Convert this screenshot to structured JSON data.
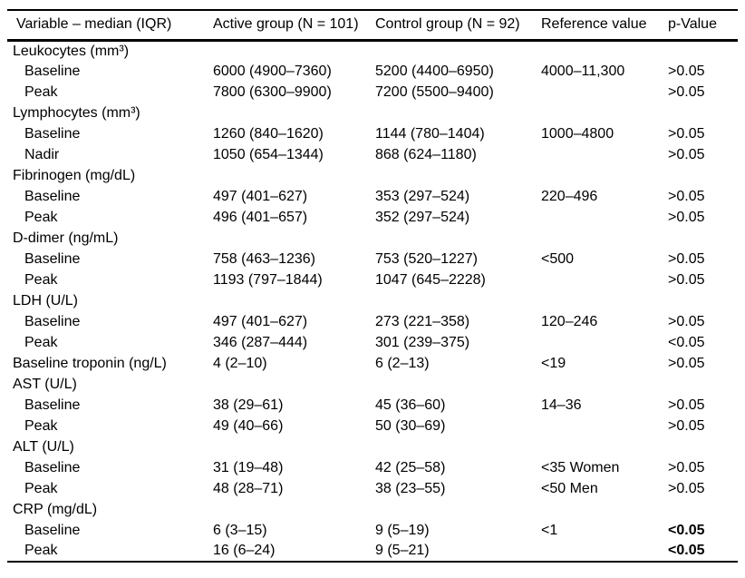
{
  "table": {
    "columns": [
      {
        "label": "Variable – median (IQR)"
      },
      {
        "label": "Active group (N = 101)"
      },
      {
        "label": "Control group (N = 92)"
      },
      {
        "label": "Reference value"
      },
      {
        "label": "p-Value"
      }
    ],
    "rows": [
      {
        "type": "group",
        "variable": "Leukocytes (mm³)",
        "active": "",
        "control": "",
        "reference": "",
        "p": "",
        "p_bold": false
      },
      {
        "type": "sub",
        "variable": "Baseline",
        "active": "6000 (4900–7360)",
        "control": "5200 (4400–6950)",
        "reference": "4000–11,300",
        "p": ">0.05",
        "p_bold": false
      },
      {
        "type": "sub",
        "variable": "Peak",
        "active": "7800 (6300–9900)",
        "control": "7200 (5500–9400)",
        "reference": "",
        "p": ">0.05",
        "p_bold": false
      },
      {
        "type": "group",
        "variable": "Lymphocytes (mm³)",
        "active": "",
        "control": "",
        "reference": "",
        "p": "",
        "p_bold": false
      },
      {
        "type": "sub",
        "variable": "Baseline",
        "active": "1260 (840–1620)",
        "control": "1144 (780–1404)",
        "reference": "1000–4800",
        "p": ">0.05",
        "p_bold": false
      },
      {
        "type": "sub",
        "variable": "Nadir",
        "active": "1050 (654–1344)",
        "control": "868 (624–1180)",
        "reference": "",
        "p": ">0.05",
        "p_bold": false
      },
      {
        "type": "group",
        "variable": "Fibrinogen (mg/dL)",
        "active": "",
        "control": "",
        "reference": "",
        "p": "",
        "p_bold": false
      },
      {
        "type": "sub",
        "variable": "Baseline",
        "active": "497 (401–627)",
        "control": "353 (297–524)",
        "reference": "220–496",
        "p": ">0.05",
        "p_bold": false
      },
      {
        "type": "sub",
        "variable": "Peak",
        "active": "496 (401–657)",
        "control": "352 (297–524)",
        "reference": "",
        "p": ">0.05",
        "p_bold": false
      },
      {
        "type": "group",
        "variable": "D-dimer (ng/mL)",
        "active": "",
        "control": "",
        "reference": "",
        "p": "",
        "p_bold": false
      },
      {
        "type": "sub",
        "variable": "Baseline",
        "active": "758 (463–1236)",
        "control": "753 (520–1227)",
        "reference": "<500",
        "p": ">0.05",
        "p_bold": false
      },
      {
        "type": "sub",
        "variable": "Peak",
        "active": "1193 (797–1844)",
        "control": "1047 (645–2228)",
        "reference": "",
        "p": ">0.05",
        "p_bold": false
      },
      {
        "type": "group",
        "variable": "LDH (U/L)",
        "active": "",
        "control": "",
        "reference": "",
        "p": "",
        "p_bold": false
      },
      {
        "type": "sub",
        "variable": "Baseline",
        "active": "497 (401–627)",
        "control": "273 (221–358)",
        "reference": "120–246",
        "p": ">0.05",
        "p_bold": false
      },
      {
        "type": "sub",
        "variable": "Peak",
        "active": "346 (287–444)",
        "control": "301 (239–375)",
        "reference": "",
        "p": "<0.05",
        "p_bold": false
      },
      {
        "type": "flat",
        "variable": "Baseline troponin (ng/L)",
        "active": "4 (2–10)",
        "control": "6 (2–13)",
        "reference": "<19",
        "p": ">0.05",
        "p_bold": false
      },
      {
        "type": "group",
        "variable": "AST (U/L)",
        "active": "",
        "control": "",
        "reference": "",
        "p": "",
        "p_bold": false
      },
      {
        "type": "sub",
        "variable": "Baseline",
        "active": "38 (29–61)",
        "control": "45 (36–60)",
        "reference": "14–36",
        "p": ">0.05",
        "p_bold": false
      },
      {
        "type": "sub",
        "variable": "Peak",
        "active": "49 (40–66)",
        "control": "50 (30–69)",
        "reference": "",
        "p": ">0.05",
        "p_bold": false
      },
      {
        "type": "group",
        "variable": "ALT (U/L)",
        "active": "",
        "control": "",
        "reference": "",
        "p": "",
        "p_bold": false
      },
      {
        "type": "sub",
        "variable": "Baseline",
        "active": "31 (19–48)",
        "control": "42 (25–58)",
        "reference": "<35 Women",
        "p": ">0.05",
        "p_bold": false
      },
      {
        "type": "sub",
        "variable": "Peak",
        "active": "48 (28–71)",
        "control": "38 (23–55)",
        "reference": "<50 Men",
        "p": ">0.05",
        "p_bold": false
      },
      {
        "type": "group",
        "variable": "CRP (mg/dL)",
        "active": "",
        "control": "",
        "reference": "",
        "p": "",
        "p_bold": false
      },
      {
        "type": "sub",
        "variable": "Baseline",
        "active": "6 (3–15)",
        "control": "9 (5–19)",
        "reference": "<1",
        "p": "<0.05",
        "p_bold": true
      },
      {
        "type": "sub",
        "variable": "Peak",
        "active": "16 (6–24)",
        "control": "9 (5–21)",
        "reference": "",
        "p": "<0.05",
        "p_bold": true
      }
    ]
  }
}
